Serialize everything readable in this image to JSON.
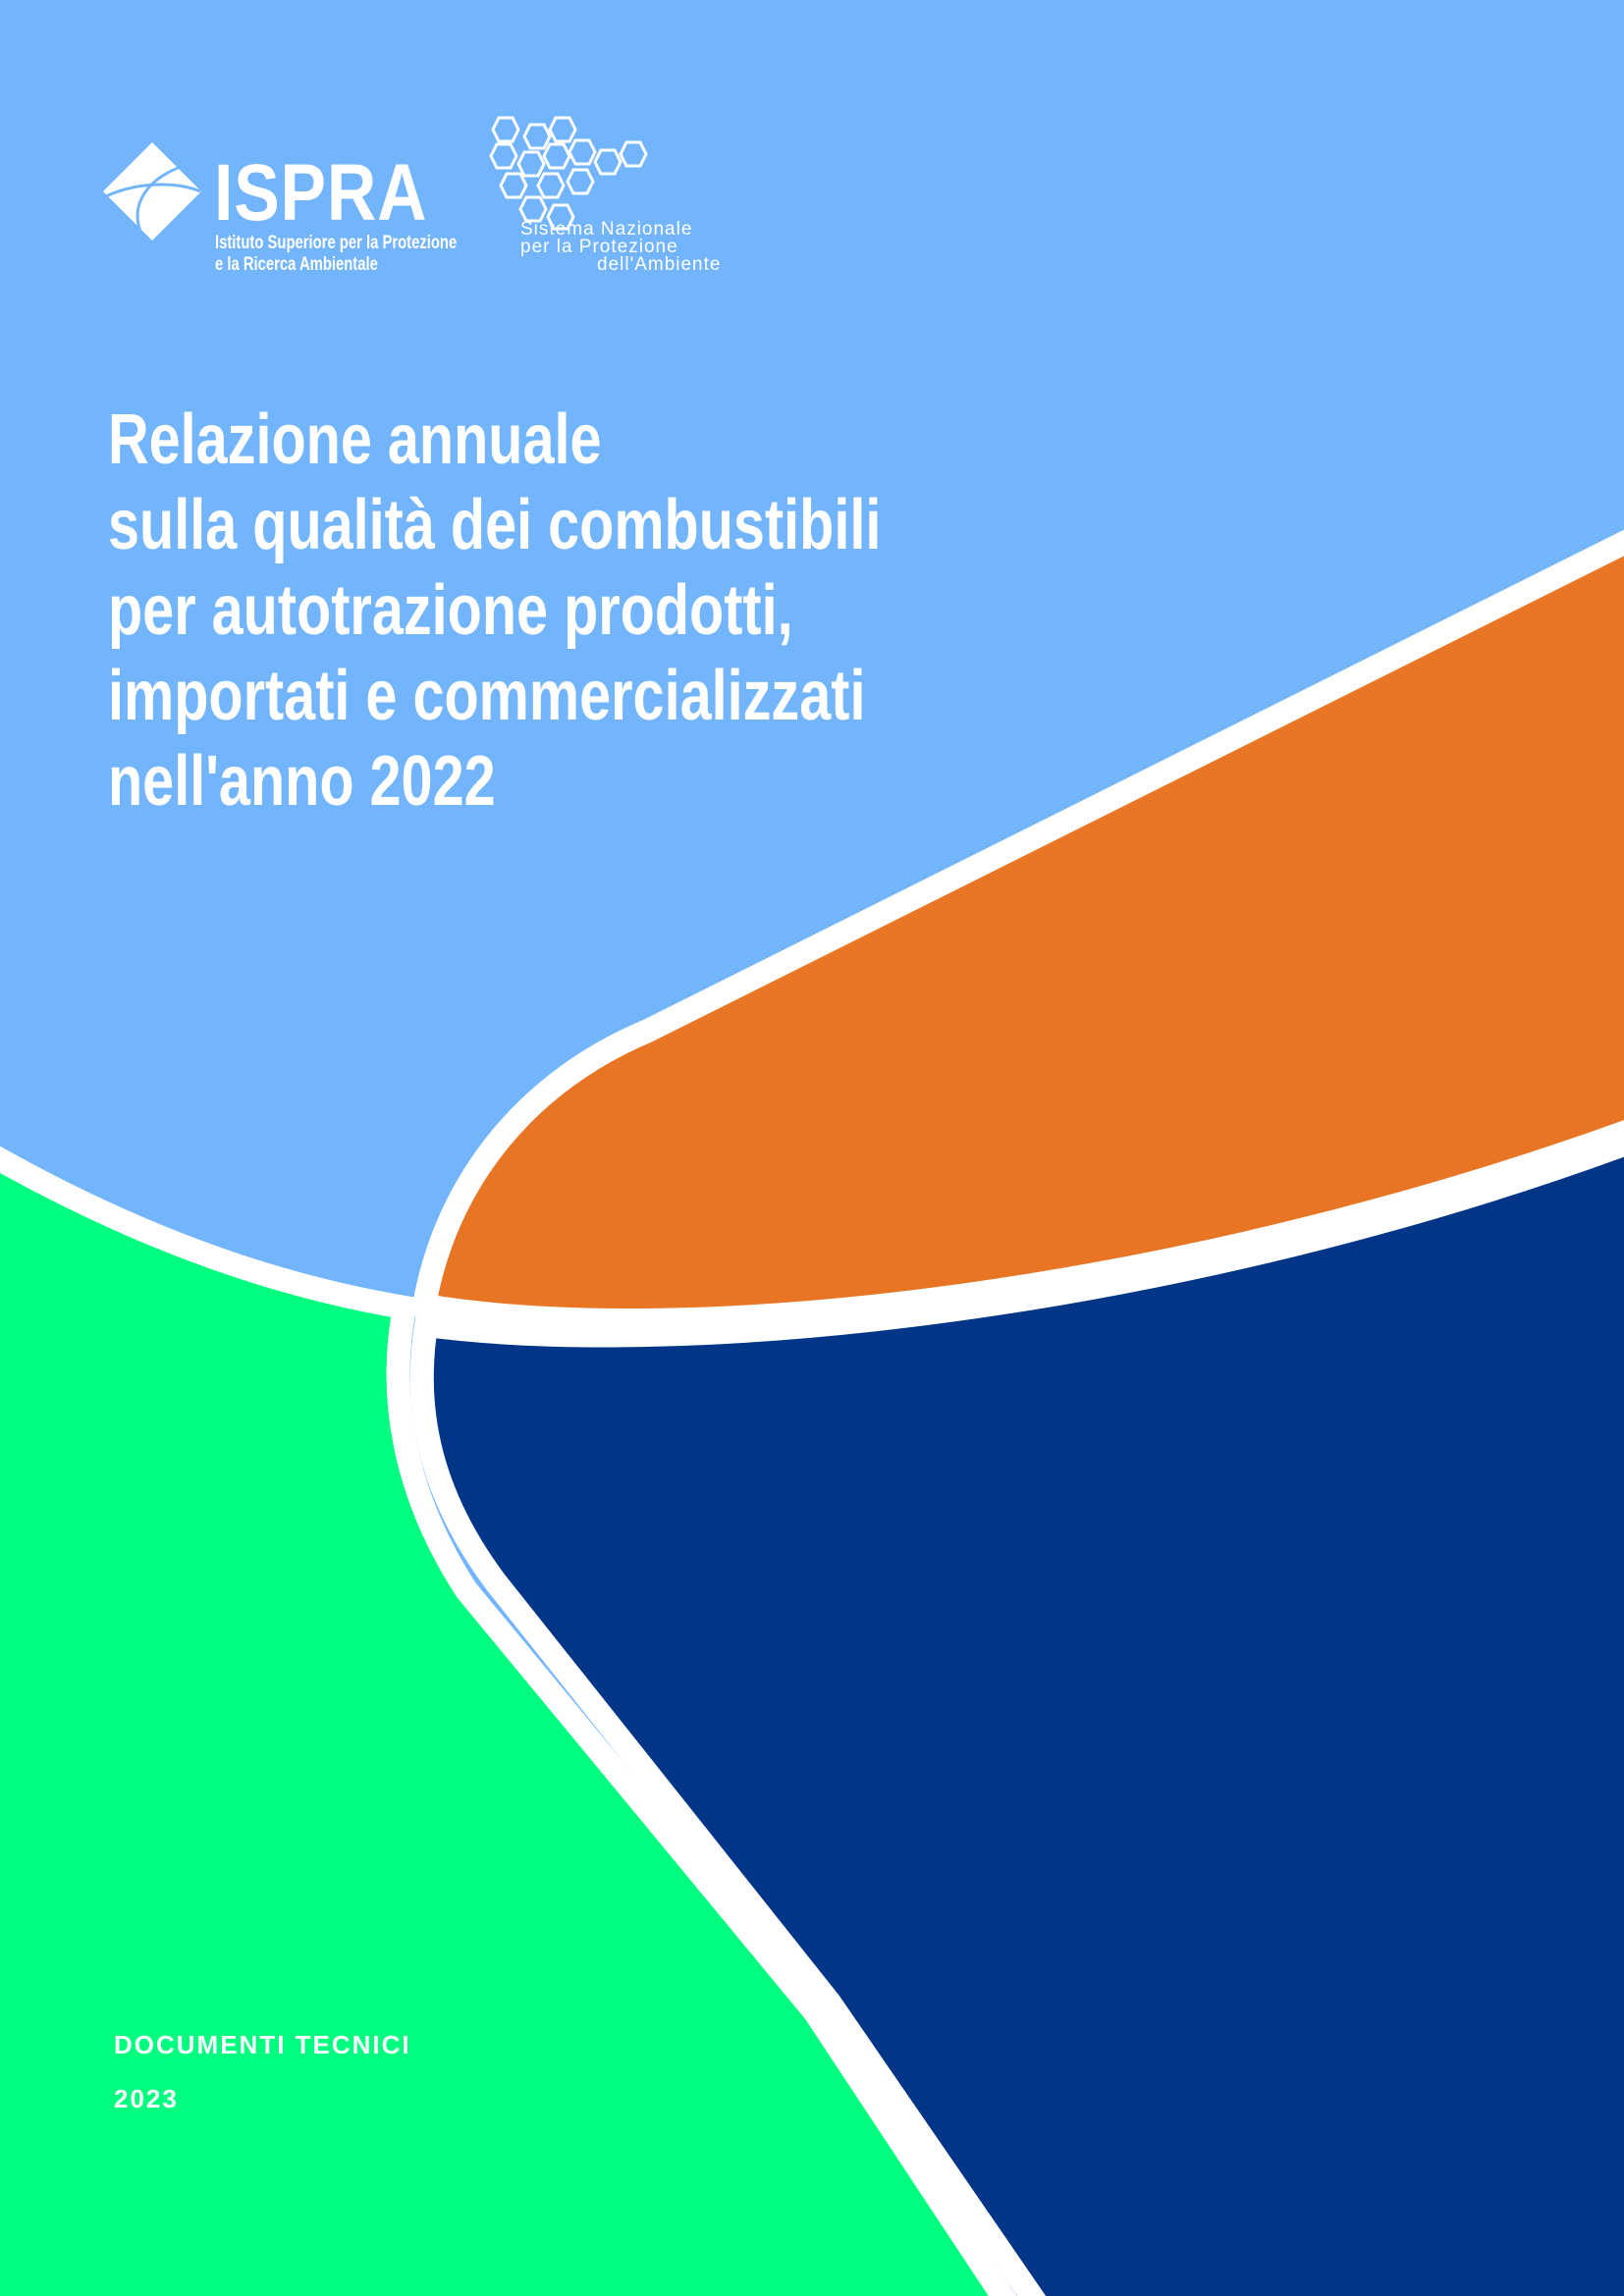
{
  "logos": {
    "ispra": {
      "name": "ISPRA",
      "subtitle_line1": "Istituto Superiore per la Protezione",
      "subtitle_line2": "e la Ricerca Ambientale"
    },
    "snpa": {
      "line1": "Sistema Nazionale",
      "line2": "per la Protezione",
      "line3": "dell'Ambiente"
    }
  },
  "title": {
    "lines": [
      "Relazione annuale",
      "sulla qualità dei combustibili",
      "per autotrazione prodotti,",
      "importati e commercializzati",
      "nell'anno 2022"
    ]
  },
  "footer": {
    "series": "DOCUMENTI TECNICI",
    "year": "2023"
  },
  "colors": {
    "light_blue": "#72b5fd",
    "orange": "#e87524",
    "navy": "#003587",
    "green": "#00fd7f",
    "divider": "#ffffff"
  }
}
